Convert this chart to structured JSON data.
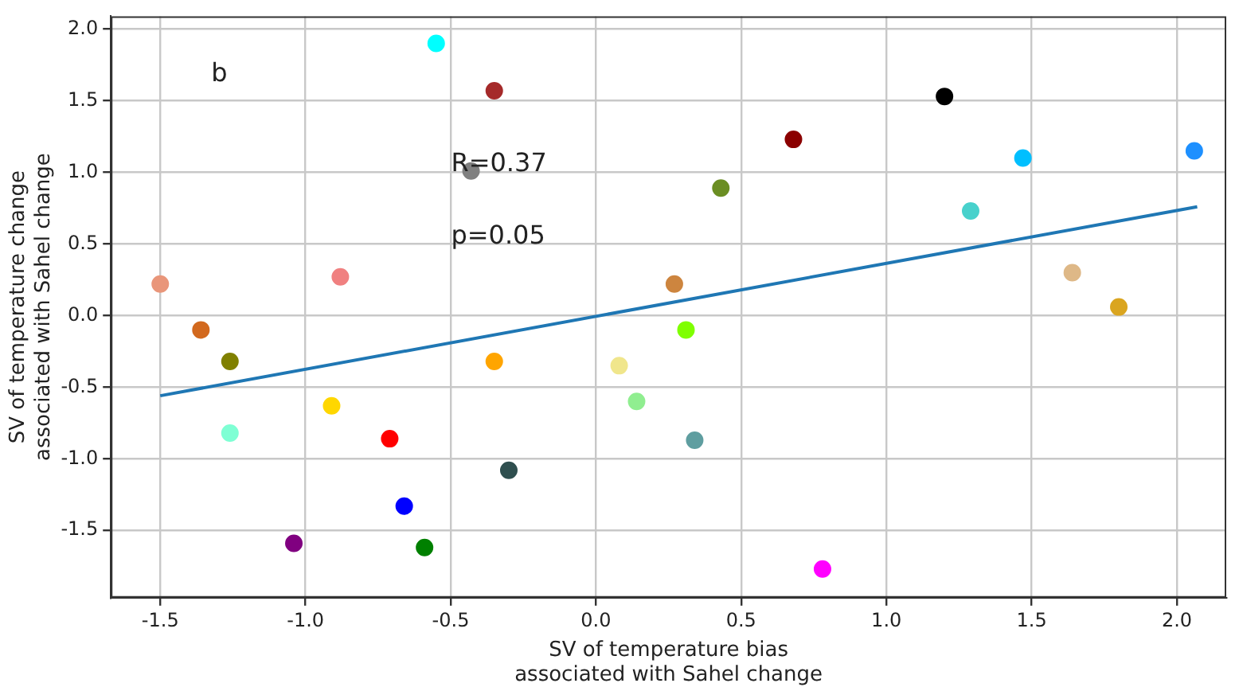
{
  "chart_data": {
    "type": "scatter",
    "xlabel": "SV of temperature bias\nassociated with Sahel change",
    "ylabel": "SV of temperature change\nassociated with Sahel change",
    "annotations": [
      "b",
      "R=0.37",
      "p=0.05"
    ],
    "xlim": [
      -1.67,
      2.17
    ],
    "ylim": [
      -1.97,
      2.09
    ],
    "xticks": [
      {
        "value": -1.5,
        "label": "-1.5"
      },
      {
        "value": -1,
        "label": "-1.0"
      },
      {
        "value": -0.5,
        "label": "-0.5"
      },
      {
        "value": 0,
        "label": "0.0"
      },
      {
        "value": 0.5,
        "label": "0.5"
      },
      {
        "value": 1,
        "label": "1.0"
      },
      {
        "value": 1.5,
        "label": "1.5"
      },
      {
        "value": 2,
        "label": "2.0"
      }
    ],
    "yticks": [
      {
        "value": -1.5,
        "label": "-1.5"
      },
      {
        "value": -1,
        "label": "-1.0"
      },
      {
        "value": -0.5,
        "label": "-0.5"
      },
      {
        "value": 0,
        "label": "0.0"
      },
      {
        "value": 0.5,
        "label": "0.5"
      },
      {
        "value": 1,
        "label": "1.0"
      },
      {
        "value": 1.5,
        "label": "1.5"
      },
      {
        "value": 2,
        "label": "2.0"
      }
    ],
    "grid": true,
    "legend": false,
    "marker": "circle",
    "series": [
      {
        "type": "scatter",
        "x": [
          -1.5,
          -1.36,
          -1.26,
          -1.26,
          -1.04,
          -0.91,
          -0.88,
          -0.71,
          -0.66,
          -0.59,
          -0.55,
          -0.43,
          -0.35,
          -0.35,
          -0.3,
          0.08,
          0.14,
          0.27,
          0.31,
          0.34,
          0.43,
          0.68,
          0.78,
          1.2,
          1.29,
          1.47,
          1.64,
          1.8,
          2.06
        ],
        "values": [
          0.22,
          -0.1,
          -0.32,
          -0.82,
          -1.59,
          -0.63,
          0.27,
          -0.86,
          -1.33,
          -1.62,
          1.9,
          1.01,
          -0.32,
          1.57,
          -1.08,
          -0.35,
          -0.6,
          0.22,
          -0.1,
          -0.87,
          0.89,
          1.23,
          -1.77,
          1.53,
          0.73,
          1.1,
          0.3,
          0.06,
          1.15
        ],
        "colors": [
          "#e9967a",
          "#d2691e",
          "#808000",
          "#7fffd4",
          "#800080",
          "#ffd700",
          "#f08080",
          "#ff0000",
          "#0000ff",
          "#008000",
          "#00ffff",
          "#808080",
          "#ffa500",
          "#a52a2a",
          "#2f4f4f",
          "#f0e68c",
          "#90ee90",
          "#cd853f",
          "#7fff00",
          "#5f9ea0",
          "#6b8e23",
          "#8b0000",
          "#ff00ff",
          "#000000",
          "#48d1cc",
          "#00bfff",
          "#deb887",
          "#daa520",
          "#1e90ff"
        ]
      },
      {
        "type": "line",
        "x": [
          -1.5,
          2.07
        ],
        "values": [
          -0.56,
          0.76
        ],
        "color": "#1f77b4",
        "marker": "none",
        "line_style": "solid"
      }
    ]
  }
}
